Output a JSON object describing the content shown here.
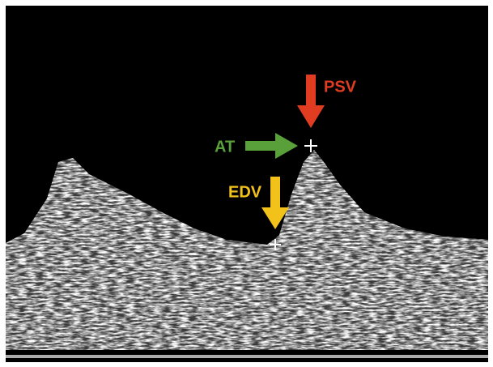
{
  "labels": {
    "psv": "PSV",
    "at": "AT",
    "edv": "EDV"
  }
}
